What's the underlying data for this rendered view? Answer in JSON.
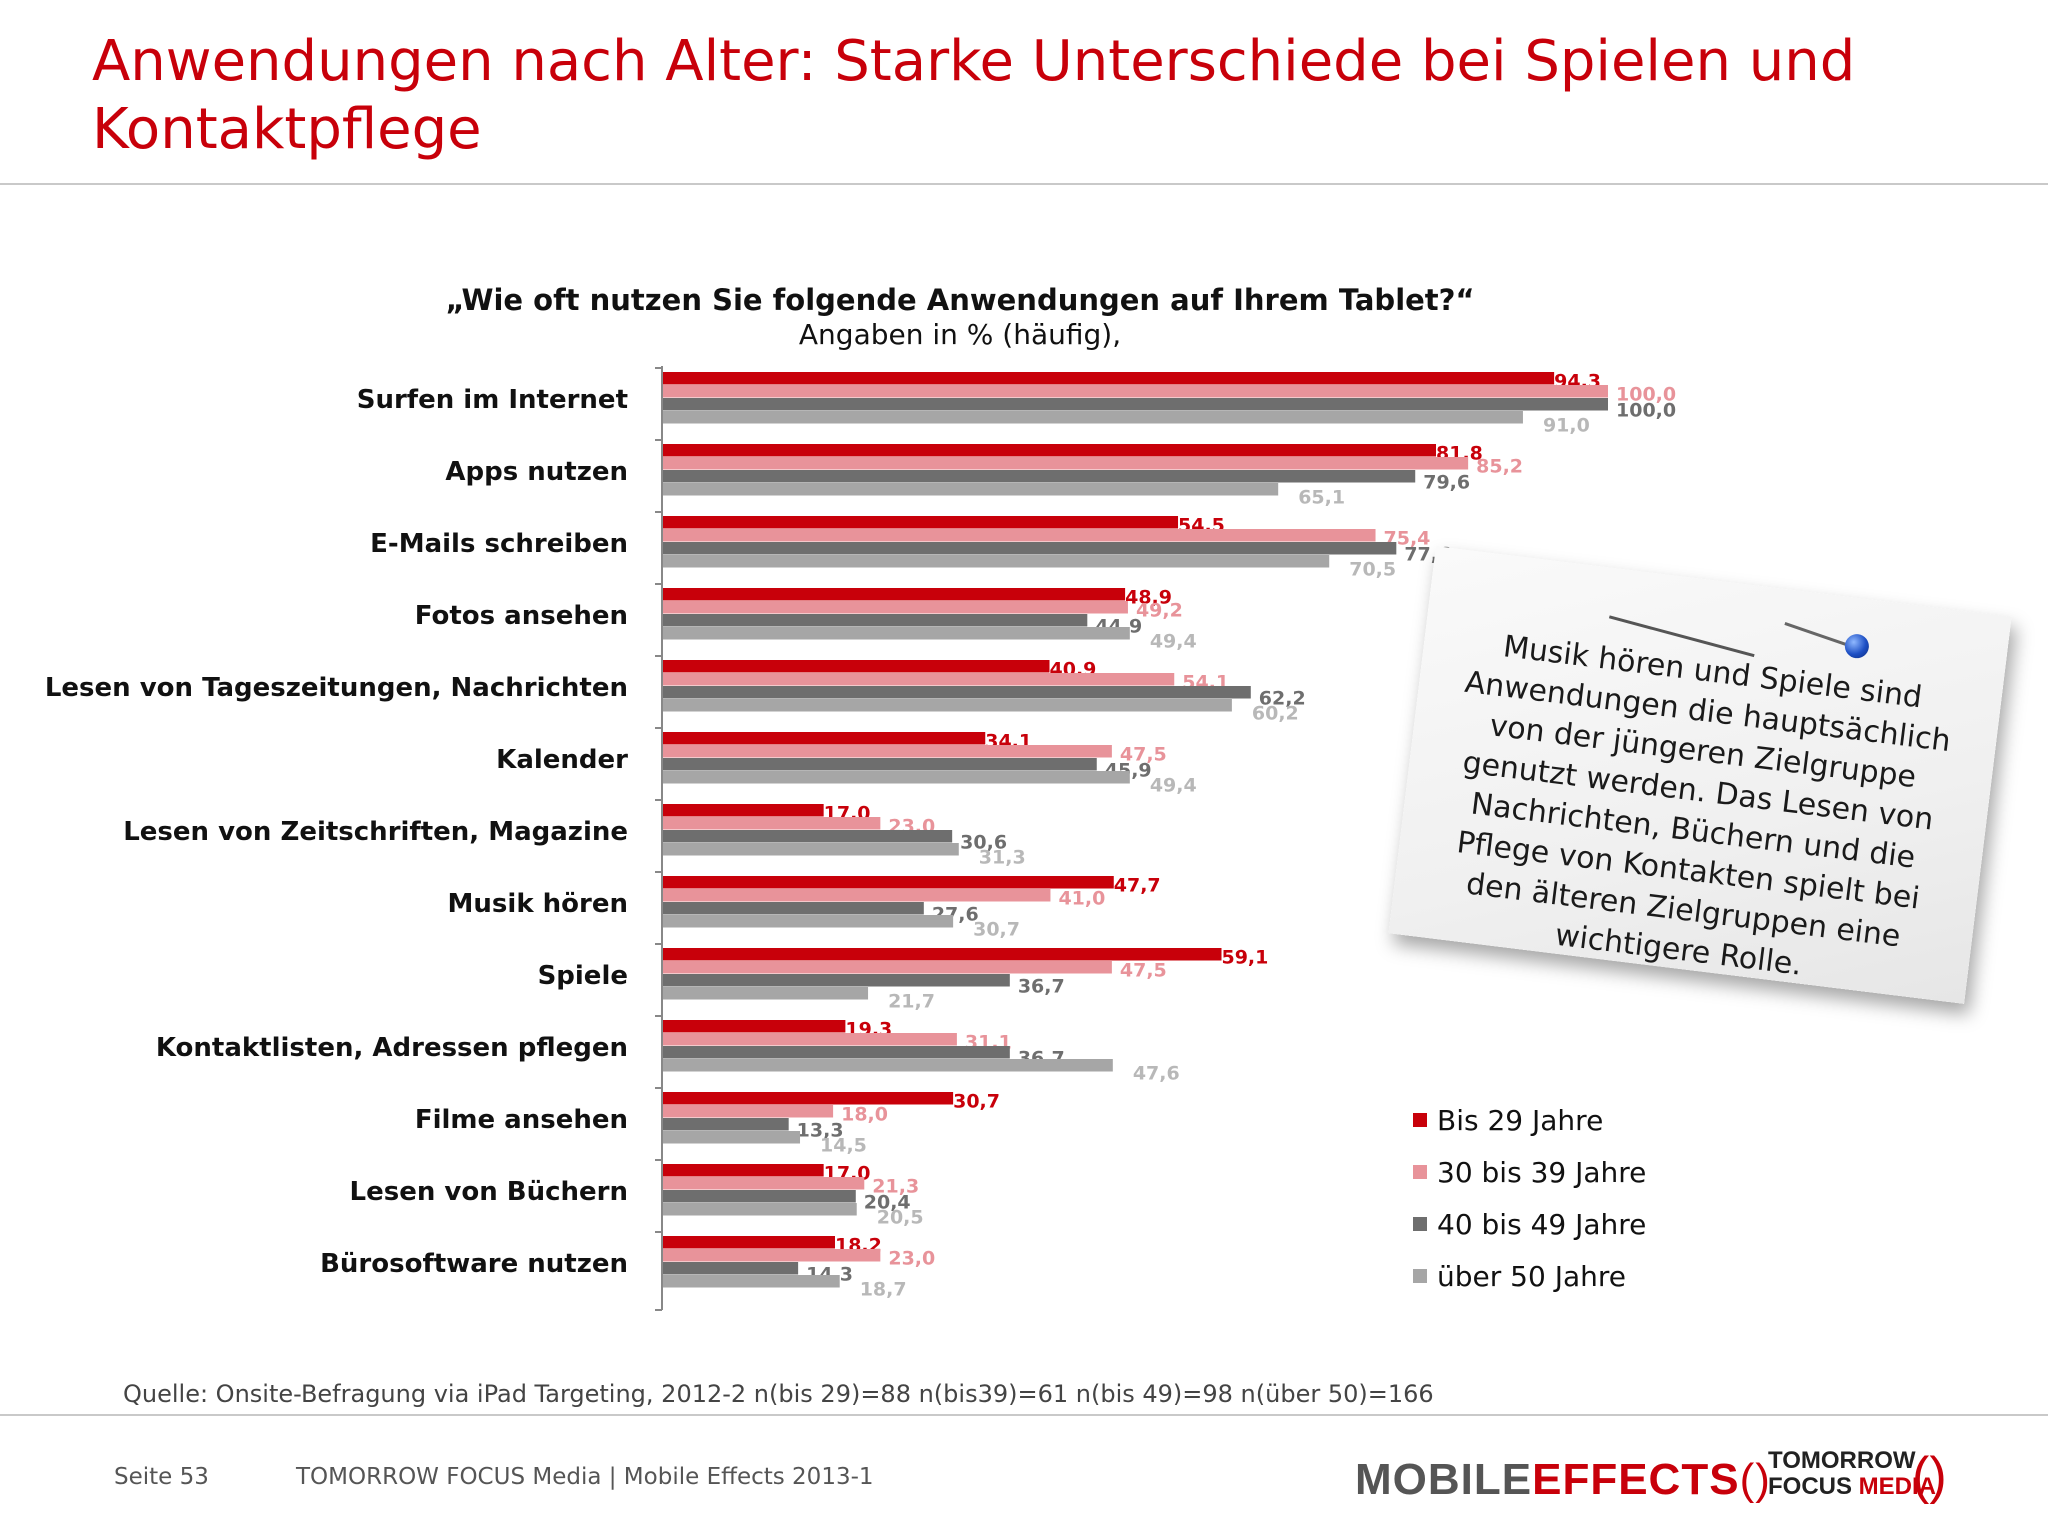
{
  "slide": {
    "title": "Anwendungen nach Alter: Starke Unterschiede bei Spielen und Kontaktpflege",
    "question": "„Wie oft nutzen Sie folgende Anwendungen auf Ihrem Tablet?“",
    "subtitle": "Angaben in % (häufig),",
    "note": "Musik hören und Spiele sind Anwendungen die hauptsächlich von der jüngeren Zielgruppe genutzt werden. Das Lesen von Nachrichten, Büchern und die Pflege von Kontakten spielt bei den älteren Zielgruppen eine wichtigere Rolle.",
    "source": "Quelle: Onsite-Befragung via iPad Targeting, 2012-2 n(bis 29)=88 n(bis39)=61 n(bis 49)=98 n(über 50)=166",
    "footer_page": "Seite 53",
    "footer_text": "TOMORROW FOCUS Media  |  Mobile Effects 2013-1",
    "logo_mobile": "MOBILE",
    "logo_effects": "EFFECTS",
    "logo_paren": "()",
    "logo_tomorrow": "TOMORROW",
    "logo_focus": "FOCUS",
    "logo_media": "MEDIA",
    "logo_tf_paren": "()"
  },
  "chart_data": {
    "type": "bar",
    "orientation": "horizontal",
    "title": "„Wie oft nutzen Sie folgende Anwendungen auf Ihrem Tablet?“",
    "subtitle": "Angaben in % (häufig),",
    "xlim": [
      0,
      100
    ],
    "categories": [
      "Surfen im Internet",
      "Apps nutzen",
      "E-Mails schreiben",
      "Fotos ansehen",
      "Lesen von Tageszeitungen, Nachrichten",
      "Kalender",
      "Lesen von Zeitschriften, Magazine",
      "Musik hören",
      "Spiele",
      "Kontaktlisten, Adressen pflegen",
      "Filme ansehen",
      "Lesen von Büchern",
      "Bürosoftware nutzen"
    ],
    "series": [
      {
        "name": "Bis 29 Jahre",
        "color": "#c8000a",
        "label_color": "#c8000a",
        "values": [
          94.3,
          81.8,
          54.5,
          48.9,
          40.9,
          34.1,
          17.0,
          47.7,
          59.1,
          19.3,
          30.7,
          17.0,
          18.2
        ],
        "labels": [
          "94,3",
          "81,8",
          "54,5",
          "48,9",
          "40,9",
          "34,1",
          "17,0",
          "47,7",
          "59,1",
          "19,3",
          "30,7",
          "17,0",
          "18,2"
        ]
      },
      {
        "name": "30 bis 39 Jahre",
        "color": "#e8939a",
        "label_color": "#e8939a",
        "values": [
          100.0,
          85.2,
          75.4,
          49.2,
          54.1,
          47.5,
          23.0,
          41.0,
          47.5,
          31.1,
          18.0,
          21.3,
          23.0
        ],
        "labels": [
          "100,0",
          "85,2",
          "75,4",
          "49,2",
          "54,1",
          "47,5",
          "23,0",
          "41,0",
          "47,5",
          "31,1",
          "18,0",
          "21,3",
          "23,0"
        ]
      },
      {
        "name": "40 bis 49 Jahre",
        "color": "#6e6e6e",
        "label_color": "#6e6e6e",
        "values": [
          100.0,
          79.6,
          77.6,
          44.9,
          62.2,
          45.9,
          30.6,
          27.6,
          36.7,
          36.7,
          13.3,
          20.4,
          14.3
        ],
        "labels": [
          "100,0",
          "79,6",
          "77,6",
          "44,9",
          "62,2",
          "45,9",
          "30,6",
          "27,6",
          "36,7",
          "36,7",
          "13,3",
          "20,4",
          "14,3"
        ]
      },
      {
        "name": "über 50 Jahre",
        "color": "#a6a6a6",
        "label_color": "#b8b8b8",
        "values": [
          91.0,
          65.1,
          70.5,
          49.4,
          60.2,
          49.4,
          31.3,
          30.7,
          21.7,
          47.6,
          14.5,
          20.5,
          18.7
        ],
        "labels": [
          "91,0",
          "65,1",
          "70,5",
          "49,4",
          "60,2",
          "49,4",
          "31,3",
          "30,7",
          "21,7",
          "47,6",
          "14,5",
          "20,5",
          "18,7"
        ]
      }
    ],
    "legend_position": "bottom-right",
    "grid": false
  }
}
